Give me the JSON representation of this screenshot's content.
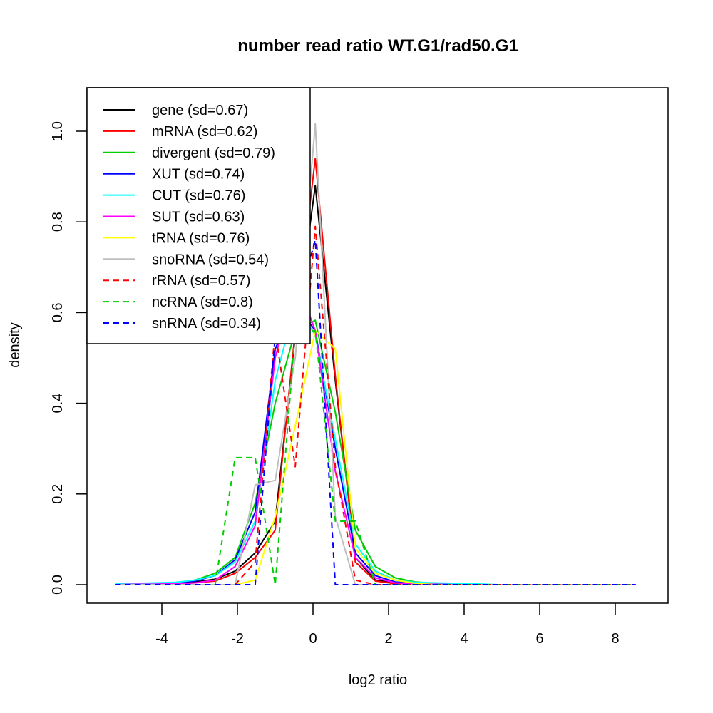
{
  "chart_data": {
    "type": "line",
    "title": "number read ratio WT.G1/rad50.G1",
    "xlabel": "log2 ratio",
    "ylabel": "density",
    "xlim": [
      -5.98,
      9.38
    ],
    "ylim": [
      -0.04,
      1.1
    ],
    "xticks": [
      -4,
      -2,
      0,
      2,
      4,
      6,
      8
    ],
    "xtick_labels": [
      "-4",
      "-2",
      "0",
      "2",
      "4",
      "6",
      "8"
    ],
    "yticks": [
      0.0,
      0.2,
      0.4,
      0.6,
      0.8,
      1.0
    ],
    "ytick_labels": [
      "0.0",
      "0.2",
      "0.4",
      "0.6",
      "0.8",
      "1.0"
    ],
    "grid": false,
    "legend_position": "top-left",
    "x": [
      -5.24,
      -4.71,
      -4.18,
      -3.65,
      -3.12,
      -2.59,
      -2.06,
      -1.53,
      -1.0,
      -0.47,
      0.06,
      0.59,
      1.12,
      1.65,
      2.18,
      2.71,
      3.24,
      3.77,
      4.3,
      4.83,
      5.36,
      5.89,
      6.42,
      6.95,
      7.48,
      8.01,
      8.54
    ],
    "series": [
      {
        "name": "gene (sd=0.67)",
        "color": "#000000",
        "dashed": false,
        "values": [
          0,
          0,
          0.002,
          0.004,
          0.006,
          0.012,
          0.03,
          0.07,
          0.14,
          0.55,
          0.88,
          0.45,
          0.06,
          0.01,
          0.004,
          0.002,
          0.001,
          0,
          0,
          0,
          0,
          0,
          0,
          0,
          0,
          0,
          0
        ]
      },
      {
        "name": "mRNA (sd=0.62)",
        "color": "#ff0000",
        "dashed": false,
        "values": [
          0,
          0,
          0,
          0.002,
          0.004,
          0.008,
          0.025,
          0.06,
          0.12,
          0.56,
          0.94,
          0.46,
          0.05,
          0.008,
          0.002,
          0.001,
          0,
          0,
          0,
          0,
          0,
          0,
          0,
          0,
          0,
          0,
          0
        ]
      },
      {
        "name": "divergent (sd=0.79)",
        "color": "#00cd00",
        "dashed": false,
        "values": [
          0,
          0.001,
          0.002,
          0.004,
          0.01,
          0.025,
          0.06,
          0.18,
          0.4,
          0.56,
          0.583,
          0.38,
          0.12,
          0.04,
          0.015,
          0.006,
          0.003,
          0.002,
          0.001,
          0,
          0,
          0,
          0,
          0,
          0,
          0,
          0
        ]
      },
      {
        "name": "XUT (sd=0.74)",
        "color": "#0000ff",
        "dashed": false,
        "values": [
          0,
          0.001,
          0.002,
          0.004,
          0.008,
          0.02,
          0.055,
          0.16,
          0.52,
          0.62,
          0.56,
          0.3,
          0.07,
          0.02,
          0.006,
          0.003,
          0.002,
          0.001,
          0,
          0,
          0,
          0,
          0,
          0,
          0,
          0,
          0
        ]
      },
      {
        "name": "CUT (sd=0.76)",
        "color": "#00ffff",
        "dashed": false,
        "values": [
          0.002,
          0.003,
          0.004,
          0.005,
          0.01,
          0.02,
          0.05,
          0.14,
          0.45,
          0.62,
          0.55,
          0.32,
          0.09,
          0.03,
          0.01,
          0.005,
          0.004,
          0.003,
          0.002,
          0,
          0,
          0,
          0,
          0,
          0,
          0,
          0
        ]
      },
      {
        "name": "SUT (sd=0.63)",
        "color": "#ff00ff",
        "dashed": false,
        "values": [
          0,
          0.001,
          0.001,
          0.002,
          0.004,
          0.01,
          0.04,
          0.13,
          0.5,
          0.68,
          0.56,
          0.25,
          0.06,
          0.015,
          0.004,
          0.002,
          0.001,
          0,
          0,
          0,
          0,
          0,
          0,
          0,
          0,
          0,
          0
        ]
      },
      {
        "name": "tRNA (sd=0.76)",
        "color": "#ffff00",
        "dashed": false,
        "values": [
          0,
          0,
          0,
          0,
          0,
          0,
          0,
          0.01,
          0.15,
          0.35,
          0.56,
          0.52,
          0.08,
          0.025,
          0.01,
          0.003,
          0,
          0,
          0,
          0,
          0,
          0,
          0,
          0,
          0,
          0,
          0
        ]
      },
      {
        "name": "snoRNA (sd=0.54)",
        "color": "#bebebe",
        "dashed": false,
        "values": [
          0,
          0,
          0,
          0,
          0,
          0,
          0,
          0.22,
          0.23,
          0.5,
          1.016,
          0.15,
          0,
          0,
          0,
          0,
          0,
          0,
          0,
          0,
          0,
          0,
          0,
          0,
          0,
          0,
          0
        ]
      },
      {
        "name": "rRNA (sd=0.57)",
        "color": "#ff0000",
        "dashed": true,
        "values": [
          0,
          0,
          0,
          0,
          0,
          0,
          0,
          0.05,
          0.56,
          0.26,
          0.79,
          0.26,
          0.01,
          0,
          0,
          0,
          0,
          0,
          0,
          0,
          0,
          0,
          0,
          0,
          0,
          0,
          0
        ]
      },
      {
        "name": "ncRNA (sd=0.8)",
        "color": "#00cd00",
        "dashed": true,
        "values": [
          0,
          0,
          0,
          0,
          0,
          0,
          0.28,
          0.28,
          0,
          0.56,
          0.56,
          0.14,
          0.14,
          0,
          0,
          0,
          0,
          0,
          0,
          0,
          0,
          0,
          0,
          0,
          0,
          0,
          0
        ]
      },
      {
        "name": "snRNA (sd=0.34)",
        "color": "#0000ff",
        "dashed": true,
        "values": [
          0,
          0,
          0,
          0,
          0,
          0,
          0,
          0,
          0.55,
          0.6,
          0.76,
          0,
          0,
          0,
          0,
          0,
          0,
          0,
          0,
          0,
          0,
          0,
          0,
          0,
          0,
          0,
          0
        ]
      }
    ]
  }
}
